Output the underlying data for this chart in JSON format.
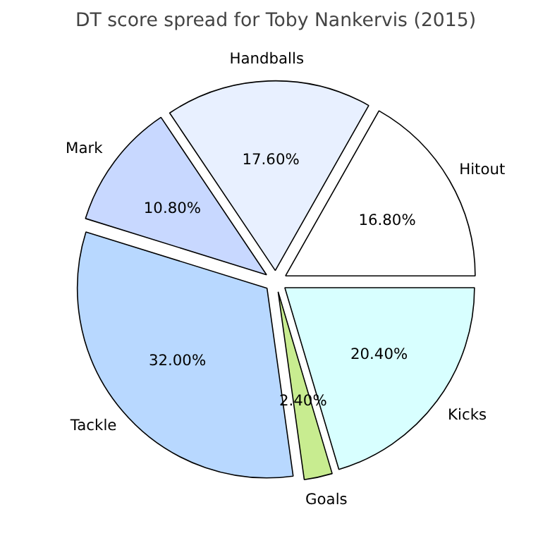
{
  "chart_data": {
    "type": "pie",
    "title": "DT score spread for Toby Nankervis (2015)",
    "categories": [
      "Hitout",
      "Handballs",
      "Mark",
      "Tackle",
      "Goals",
      "Kicks"
    ],
    "values": [
      16.8,
      17.6,
      10.8,
      32.0,
      2.4,
      20.4
    ],
    "value_labels": [
      "16.80%",
      "17.60%",
      "10.80%",
      "32.00%",
      "2.40%",
      "20.40%"
    ],
    "colors": [
      "#ffffff",
      "#e8f0ff",
      "#c8d8ff",
      "#b8d8ff",
      "#c8ec90",
      "#d8ffff"
    ],
    "legend": false
  }
}
